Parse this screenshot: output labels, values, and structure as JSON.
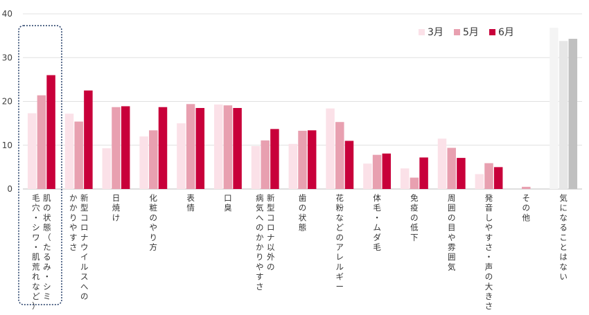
{
  "chart_data": {
    "type": "bar",
    "ylim": [
      0,
      40
    ],
    "yticks": [
      0,
      10,
      20,
      30,
      40
    ],
    "grid": true,
    "legend_position": "top-right",
    "highlighted_category_index": 0,
    "categories": [
      [
        "肌の状態（たるみ・シミ",
        "毛穴・シワ・肌荒れなど）"
      ],
      [
        "新型コロナウイルスへの",
        "かかりやすさ"
      ],
      [
        "日焼け"
      ],
      [
        "化粧のやり方"
      ],
      [
        "表情"
      ],
      [
        "口臭"
      ],
      [
        "新型コロナ以外の",
        "病気へのかかりやすさ"
      ],
      [
        "歯の状態"
      ],
      [
        "花粉などのアレルギー"
      ],
      [
        "体毛・ムダ毛"
      ],
      [
        "免疫の低下"
      ],
      [
        "周囲の目や雰囲気"
      ],
      [
        "発音しやすさ・声の大きさ"
      ],
      [
        "その他"
      ],
      [
        "気になることはない"
      ]
    ],
    "series": [
      {
        "name": "3月",
        "color": "#fbe1e8",
        "values": [
          17.3,
          17.2,
          9.3,
          12.0,
          15.0,
          19.3,
          9.8,
          10.3,
          18.4,
          5.8,
          4.7,
          11.5,
          3.4,
          0.0,
          36.8
        ]
      },
      {
        "name": "5月",
        "color": "#e8a0b0",
        "values": [
          21.4,
          15.4,
          18.7,
          13.4,
          19.4,
          19.1,
          11.1,
          13.3,
          15.3,
          7.8,
          2.6,
          9.4,
          5.9,
          0.5,
          33.8
        ]
      },
      {
        "name": "6月",
        "color": "#c8003a",
        "values": [
          26.0,
          22.5,
          18.9,
          18.7,
          18.5,
          18.5,
          13.7,
          13.4,
          11.0,
          8.1,
          7.2,
          7.1,
          5.0,
          0.0,
          34.3
        ]
      }
    ],
    "last_category_colors": [
      "#f4f4f4",
      "#e6e6e6",
      "#c0c0c0"
    ]
  }
}
